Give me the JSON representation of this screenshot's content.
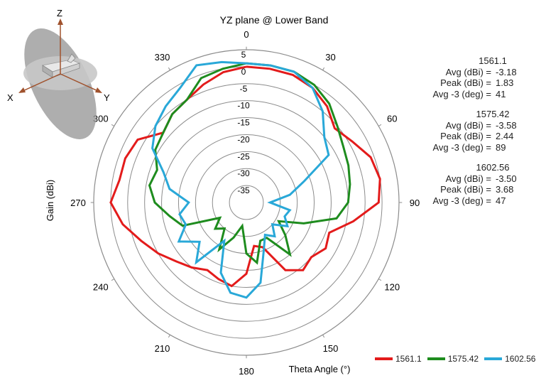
{
  "chart_data": {
    "type": "polar-line",
    "title": "YZ plane @ Lower Band",
    "xlabel": "Theta Angle (°)",
    "ylabel": "Gain (dBi)",
    "rlim": [
      -40,
      5
    ],
    "radial_ticks": [
      5,
      0,
      -5,
      -10,
      -15,
      -20,
      -25,
      -30,
      -35
    ],
    "angle_ticks": [
      0,
      30,
      60,
      90,
      120,
      150,
      180,
      210,
      240,
      270,
      300,
      330
    ],
    "grid": true,
    "legend_position": "bottom-right",
    "series": [
      {
        "name": "1561.1",
        "color": "#e31b1b",
        "theta": [
          0,
          10,
          20,
          30,
          40,
          50,
          60,
          70,
          80,
          90,
          100,
          110,
          120,
          130,
          140,
          150,
          160,
          170,
          180,
          190,
          200,
          210,
          220,
          230,
          240,
          250,
          260,
          270,
          280,
          290,
          300,
          310,
          320,
          330,
          340,
          350
        ],
        "values": [
          0,
          0,
          0,
          -1,
          -3,
          -6,
          -4,
          -1,
          0,
          -1,
          -8,
          -14,
          -13,
          -15,
          -14,
          -17,
          -26,
          -27,
          -19,
          -15,
          -16,
          -17,
          -15,
          -13,
          -10,
          -7,
          -3,
          0,
          -2,
          -2,
          -3,
          -8,
          -6,
          -5,
          -3,
          -1
        ]
      },
      {
        "name": "1575.42",
        "color": "#1e8c1e",
        "theta": [
          0,
          10,
          20,
          30,
          40,
          50,
          60,
          70,
          80,
          90,
          100,
          110,
          120,
          130,
          140,
          150,
          160,
          170,
          180,
          190,
          200,
          210,
          220,
          230,
          240,
          250,
          260,
          270,
          280,
          290,
          300,
          310,
          320,
          330,
          340,
          350
        ],
        "values": [
          1,
          1,
          1,
          0,
          -2,
          -5,
          -7,
          -8,
          -9,
          -10,
          -13,
          -22,
          -29,
          -25,
          -20,
          -28,
          -28,
          -22,
          -25,
          -33,
          -29,
          -24,
          -30,
          -28,
          -31,
          -20,
          -17,
          -13,
          -11,
          -12,
          -9,
          -8,
          -6,
          -5,
          -1,
          0
        ]
      },
      {
        "name": "1602.56",
        "color": "#29a8d8",
        "theta": [
          0,
          10,
          20,
          30,
          40,
          50,
          60,
          70,
          80,
          90,
          100,
          110,
          120,
          130,
          140,
          150,
          160,
          170,
          180,
          190,
          200,
          210,
          220,
          230,
          240,
          250,
          260,
          270,
          280,
          290,
          300,
          310,
          320,
          330,
          340,
          350
        ],
        "values": [
          1,
          1,
          1,
          -1,
          -5,
          -10,
          -12,
          -22,
          -27,
          -33,
          -27,
          -28,
          -26,
          -30,
          -27,
          -29,
          -25,
          -16,
          -12,
          -13,
          -18,
          -27,
          -17,
          -22,
          -17,
          -21,
          -20,
          -23,
          -17,
          -14,
          -8,
          -5,
          -3,
          -1,
          3,
          2
        ]
      }
    ]
  },
  "stats": [
    {
      "freq": "1561.1",
      "avg_label": "Avg (dBi) =",
      "avg": "-3.18",
      "peak_label": "Peak (dBi) =",
      "peak": "1.83",
      "bw_label": "Avg -3 (deg) =",
      "bw": "41"
    },
    {
      "freq": "1575.42",
      "avg_label": "Avg (dBi) =",
      "avg": "-3.58",
      "peak_label": "Peak (dBi) =",
      "peak": "2.44",
      "bw_label": "Avg -3 (deg) =",
      "bw": "89"
    },
    {
      "freq": "1602.56",
      "avg_label": "Avg (dBi) =",
      "avg": "-3.50",
      "peak_label": "Peak (dBi) =",
      "peak": "3.68",
      "bw_label": "Avg -3 (deg) =",
      "bw": "47"
    }
  ],
  "axes_icon": {
    "x": "X",
    "y": "Y",
    "z": "Z",
    "icon": "antenna-orientation-icon"
  }
}
